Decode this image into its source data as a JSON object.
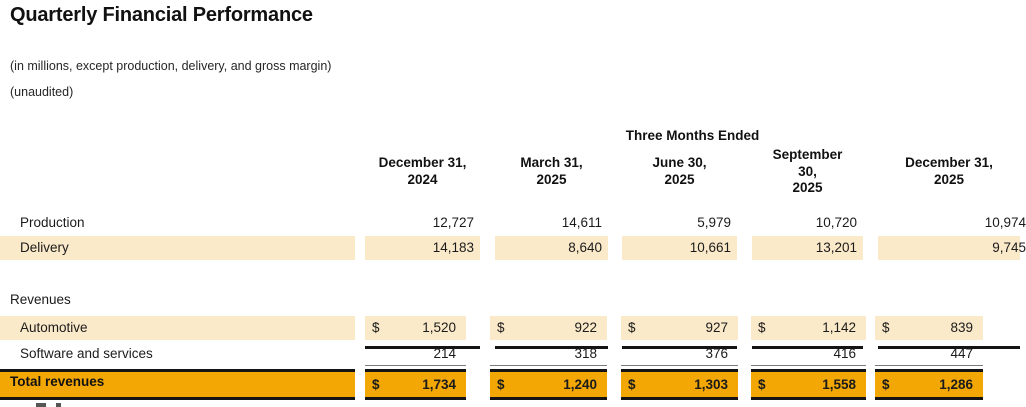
{
  "title": "Quarterly Financial Performance",
  "subtitle1": "(in millions, except production, delivery, and gross margin)",
  "subtitle2": "(unaudited)",
  "table": {
    "period_header": "Three Months Ended",
    "columns": [
      {
        "l1": "December 31,",
        "l2": "2024"
      },
      {
        "l1": "March 31,",
        "l2": "2025"
      },
      {
        "l1": "June 30,",
        "l2": "2025"
      },
      {
        "l1": "September",
        "l2": "30,",
        "l3": "2025"
      },
      {
        "l1": "December 31,",
        "l2": "2025"
      }
    ],
    "rows": {
      "production": {
        "label": "Production",
        "values": [
          "12,727",
          "14,611",
          "5,979",
          "10,720",
          "10,974"
        ]
      },
      "delivery": {
        "label": "Delivery",
        "values": [
          "14,183",
          "8,640",
          "10,661",
          "13,201",
          "9,745"
        ]
      },
      "revenues_section": {
        "label": "Revenues"
      },
      "automotive": {
        "label": "Automotive",
        "currency": "$",
        "values": [
          "1,520",
          "922",
          "927",
          "1,142",
          "839"
        ]
      },
      "software": {
        "label": "Software and services",
        "values": [
          "214",
          "318",
          "376",
          "416",
          "447"
        ]
      },
      "total": {
        "label": "Total revenues",
        "currency": "$",
        "values": [
          "1,734",
          "1,240",
          "1,303",
          "1,558",
          "1,286"
        ]
      }
    }
  },
  "colors": {
    "row_highlight": "#FBEACA",
    "total_highlight": "#F2A705",
    "border_black": "#141414",
    "rule_gray": "#7A7A7A"
  }
}
